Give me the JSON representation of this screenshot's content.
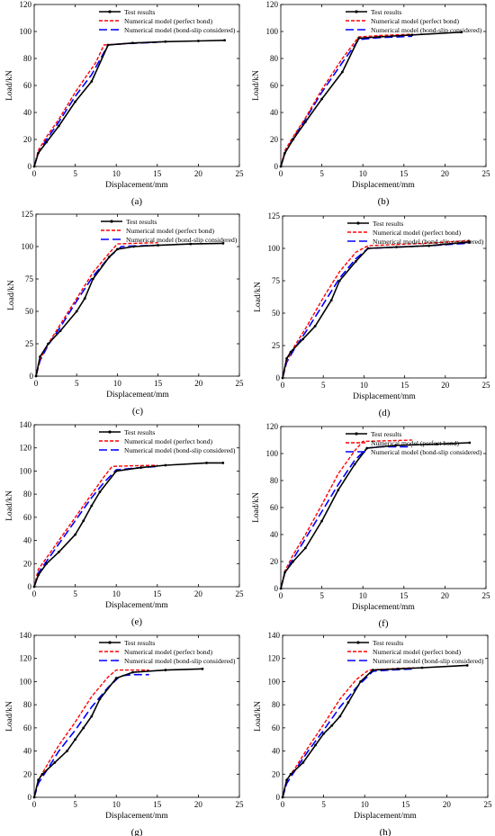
{
  "legend_labels": {
    "test": "Test results",
    "perfect": "Numerical model (perfect bond)",
    "bondslip": "Numerical model (bond-slip considered)"
  },
  "colors": {
    "test": "#000000",
    "perfect": "#ff0000",
    "bondslip": "#0000ff"
  },
  "chart_data": [
    {
      "type": "line",
      "panel_label": "(a)",
      "xlabel": "Displacement/mm",
      "ylabel": "Load/kN",
      "xlim": [
        0,
        25
      ],
      "ylim": [
        0,
        120
      ],
      "xticks": [
        0,
        5,
        10,
        15,
        20,
        25
      ],
      "yticks": [
        0,
        20,
        40,
        60,
        80,
        100,
        120
      ],
      "legend_position": "top-right",
      "grid": false,
      "series": [
        {
          "name": "Test results",
          "style": "solid-black",
          "x": [
            0,
            0.5,
            1.5,
            3,
            5,
            7,
            9,
            12,
            16,
            20,
            23.2
          ],
          "y": [
            0,
            10,
            18,
            30,
            48,
            63,
            90,
            91.5,
            92.5,
            93,
            93.5
          ]
        },
        {
          "name": "Numerical model (perfect bond)",
          "style": "dashed-red",
          "x": [
            0,
            0.5,
            1.5,
            3,
            5,
            7.5,
            8.5,
            12,
            16
          ],
          "y": [
            0,
            12,
            22,
            35,
            55,
            77,
            90,
            91.5,
            92.5
          ]
        },
        {
          "name": "Numerical model (bond-slip considered)",
          "style": "dashed-blue",
          "x": [
            0,
            0.5,
            1.5,
            3,
            5,
            7,
            9,
            11,
            15
          ],
          "y": [
            0,
            10,
            20,
            33,
            52,
            68,
            90,
            91,
            92
          ]
        }
      ]
    },
    {
      "type": "line",
      "panel_label": "(b)",
      "xlabel": "Displacement/mm",
      "ylabel": "Load/kN",
      "xlim": [
        0,
        25
      ],
      "ylim": [
        0,
        120
      ],
      "xticks": [
        0,
        5,
        10,
        15,
        20,
        25
      ],
      "yticks": [
        0,
        20,
        40,
        60,
        80,
        100,
        120
      ],
      "legend_position": "top-right",
      "grid": false,
      "series": [
        {
          "name": "Test results",
          "style": "solid-black",
          "x": [
            0,
            0.5,
            1.5,
            3,
            5,
            7.5,
            9.5,
            12,
            16,
            22
          ],
          "y": [
            0,
            10,
            20,
            33,
            50,
            70,
            95,
            96,
            97.5,
            99.5
          ]
        },
        {
          "name": "Numerical model (perfect bond)",
          "style": "dashed-red",
          "x": [
            0,
            0.5,
            1.5,
            3,
            5,
            7.5,
            9.5,
            12,
            16
          ],
          "y": [
            0,
            12,
            22,
            36,
            57,
            80,
            96,
            97,
            98
          ]
        },
        {
          "name": "Numerical model (bond-slip considered)",
          "style": "dashed-blue",
          "x": [
            0,
            0.5,
            1.5,
            3,
            5,
            7.5,
            9.5,
            12,
            16
          ],
          "y": [
            0,
            10,
            21,
            35,
            55,
            77,
            94,
            95.5,
            96.5
          ]
        }
      ]
    },
    {
      "type": "line",
      "panel_label": "(c)",
      "xlabel": "Displacement/mm",
      "ylabel": "Load/kN",
      "xlim": [
        0,
        25
      ],
      "ylim": [
        0,
        125
      ],
      "xticks": [
        0,
        5,
        10,
        15,
        20,
        25
      ],
      "yticks": [
        0,
        25,
        50,
        75,
        100,
        125
      ],
      "legend_position": "top-right",
      "grid": false,
      "series": [
        {
          "name": "Test results",
          "style": "solid-black",
          "x": [
            0,
            0.5,
            1.5,
            3,
            5,
            6,
            7,
            9,
            10,
            12,
            15,
            19,
            23
          ],
          "y": [
            0,
            15,
            25,
            35,
            50,
            60,
            75,
            92,
            98,
            100,
            101,
            102,
            102.5
          ]
        },
        {
          "name": "Numerical model (perfect bond)",
          "style": "dashed-red",
          "x": [
            0,
            0.5,
            1.5,
            3,
            5,
            7,
            9,
            10,
            12,
            15
          ],
          "y": [
            0,
            13,
            25,
            40,
            60,
            80,
            95,
            102,
            102.5,
            103
          ]
        },
        {
          "name": "Numerical model (bond-slip considered)",
          "style": "dashed-blue",
          "x": [
            0,
            0.5,
            1.5,
            3,
            5,
            7,
            9,
            10.5,
            12,
            15
          ],
          "y": [
            0,
            12,
            24,
            38,
            58,
            77,
            92,
            100,
            100.5,
            101
          ]
        }
      ]
    },
    {
      "type": "line",
      "panel_label": "(d)",
      "xlabel": "Displacement/mm",
      "ylabel": "Load/kN",
      "xlim": [
        0,
        25
      ],
      "ylim": [
        0,
        125
      ],
      "xticks": [
        0,
        5,
        10,
        15,
        20,
        25
      ],
      "yticks": [
        0,
        25,
        50,
        75,
        100,
        125
      ],
      "legend_position": "top-right",
      "grid": false,
      "series": [
        {
          "name": "Test results",
          "style": "solid-black",
          "x": [
            0,
            0.5,
            1,
            2.5,
            4,
            6,
            7,
            9,
            10.5,
            14,
            18,
            23
          ],
          "y": [
            0,
            15,
            20,
            30,
            40,
            60,
            75,
            90,
            100,
            101,
            102,
            105
          ]
        },
        {
          "name": "Numerical model (perfect bond)",
          "style": "dashed-red",
          "x": [
            0,
            0.5,
            1.5,
            3,
            5,
            7,
            9,
            10.5,
            14,
            18,
            23
          ],
          "y": [
            0,
            13,
            25,
            40,
            62,
            82,
            97,
            102,
            103,
            104,
            106
          ]
        },
        {
          "name": "Numerical model (bond-slip considered)",
          "style": "dashed-blue",
          "x": [
            0,
            0.5,
            1.5,
            3,
            5,
            7,
            9,
            10.5,
            14,
            18,
            23
          ],
          "y": [
            0,
            12,
            23,
            37,
            57,
            77,
            92,
            100,
            101,
            102,
            104
          ]
        }
      ]
    },
    {
      "type": "line",
      "panel_label": "(e)",
      "xlabel": "Displacement/mm",
      "ylabel": "Load/kN",
      "xlim": [
        0,
        25
      ],
      "ylim": [
        0,
        140
      ],
      "xticks": [
        0,
        5,
        10,
        15,
        20,
        25
      ],
      "yticks": [
        0,
        20,
        40,
        60,
        80,
        100,
        120,
        140
      ],
      "legend_position": "top-right",
      "grid": false,
      "series": [
        {
          "name": "Test results",
          "style": "solid-black",
          "x": [
            0,
            0.5,
            1.5,
            3,
            5,
            6,
            7,
            8,
            10,
            13,
            16,
            21,
            23
          ],
          "y": [
            0,
            10,
            20,
            30,
            45,
            57,
            70,
            82,
            100,
            103,
            105,
            107,
            107
          ]
        },
        {
          "name": "Numerical model (perfect bond)",
          "style": "dashed-red",
          "x": [
            0,
            0.5,
            1.5,
            3,
            5,
            7,
            8.5,
            9.5,
            12,
            15
          ],
          "y": [
            0,
            15,
            25,
            40,
            60,
            80,
            95,
            104,
            104.5,
            105
          ]
        },
        {
          "name": "Numerical model (bond-slip considered)",
          "style": "dashed-blue",
          "x": [
            0,
            0.5,
            1.5,
            3,
            5,
            7,
            8.5,
            10,
            13,
            15
          ],
          "y": [
            0,
            12,
            22,
            37,
            57,
            77,
            90,
            101,
            103,
            104
          ]
        }
      ]
    },
    {
      "type": "line",
      "panel_label": "(f)",
      "xlabel": "Displacement/mm",
      "ylabel": "Load/kN",
      "xlim": [
        0,
        25
      ],
      "ylim": [
        0,
        120
      ],
      "xticks": [
        0,
        5,
        10,
        15,
        20,
        25
      ],
      "yticks": [
        0,
        20,
        40,
        60,
        80,
        100,
        120
      ],
      "legend_position": "top-right",
      "grid": false,
      "series": [
        {
          "name": "Test results",
          "style": "solid-black",
          "x": [
            0,
            0.5,
            1.5,
            3,
            5,
            7,
            9,
            10.5,
            14,
            19,
            23
          ],
          "y": [
            0,
            12,
            20,
            30,
            50,
            73,
            92,
            104,
            106,
            107,
            108
          ]
        },
        {
          "name": "Numerical model (perfect bond)",
          "style": "dashed-red",
          "x": [
            0,
            0.5,
            1.5,
            3,
            5,
            7,
            9,
            10,
            13,
            16
          ],
          "y": [
            0,
            13,
            25,
            40,
            62,
            85,
            102,
            109,
            109.5,
            110
          ]
        },
        {
          "name": "Numerical model (bond-slip considered)",
          "style": "dashed-blue",
          "x": [
            0,
            0.5,
            1.5,
            3,
            5,
            7,
            9,
            10.5,
            12,
            16
          ],
          "y": [
            0,
            12,
            22,
            37,
            57,
            77,
            95,
            104,
            105,
            105
          ]
        }
      ]
    },
    {
      "type": "line",
      "panel_label": "(g)",
      "xlabel": "Displacement/mm",
      "ylabel": "Load/kN",
      "xlim": [
        0,
        25
      ],
      "ylim": [
        0,
        140
      ],
      "xticks": [
        0,
        5,
        10,
        15,
        20,
        25
      ],
      "yticks": [
        0,
        20,
        40,
        60,
        80,
        100,
        120,
        140
      ],
      "legend_position": "top-right",
      "grid": false,
      "series": [
        {
          "name": "Test results",
          "style": "solid-black",
          "x": [
            0,
            0.5,
            1,
            2.5,
            4,
            5,
            6,
            7,
            8,
            10,
            12,
            16,
            20.5
          ],
          "y": [
            0,
            15,
            20,
            30,
            40,
            50,
            60,
            70,
            85,
            103,
            108,
            110,
            111
          ]
        },
        {
          "name": "Numerical model (perfect bond)",
          "style": "dashed-red",
          "x": [
            0,
            0.5,
            1.5,
            3,
            5,
            7,
            9,
            10,
            12,
            14
          ],
          "y": [
            0,
            15,
            27,
            45,
            65,
            87,
            104,
            110,
            110,
            110
          ]
        },
        {
          "name": "Numerical model (bond-slip considered)",
          "style": "dashed-blue",
          "x": [
            0,
            0.5,
            1.5,
            3,
            5,
            7,
            9,
            10.5,
            12,
            14
          ],
          "y": [
            0,
            12,
            23,
            40,
            58,
            78,
            95,
            105,
            106,
            106
          ]
        }
      ]
    },
    {
      "type": "line",
      "panel_label": "(h)",
      "xlabel": "Displacement/mm",
      "ylabel": "Load/kN",
      "xlim": [
        0,
        25
      ],
      "ylim": [
        0,
        140
      ],
      "xticks": [
        0,
        5,
        10,
        15,
        20,
        25
      ],
      "yticks": [
        0,
        20,
        40,
        60,
        80,
        100,
        120,
        140
      ],
      "legend_position": "top-right",
      "grid": false,
      "series": [
        {
          "name": "Test results",
          "style": "solid-black",
          "x": [
            0,
            0.5,
            1,
            2.5,
            4,
            5,
            6,
            7,
            8,
            9.5,
            11,
            14,
            17,
            22.5
          ],
          "y": [
            0,
            15,
            20,
            30,
            45,
            55,
            62,
            70,
            82,
            100,
            110,
            111,
            112,
            114
          ]
        },
        {
          "name": "Numerical model (perfect bond)",
          "style": "dashed-red",
          "x": [
            0,
            0.5,
            1.5,
            3,
            5,
            7,
            9,
            10.5,
            13,
            16
          ],
          "y": [
            0,
            15,
            25,
            42,
            63,
            85,
            102,
            110,
            111,
            112
          ]
        },
        {
          "name": "Numerical model (bond-slip considered)",
          "style": "dashed-blue",
          "x": [
            0,
            0.5,
            1.5,
            3,
            5,
            7,
            9,
            11,
            13,
            16
          ],
          "y": [
            0,
            12,
            23,
            39,
            58,
            78,
            95,
            109,
            110,
            111
          ]
        }
      ]
    }
  ]
}
